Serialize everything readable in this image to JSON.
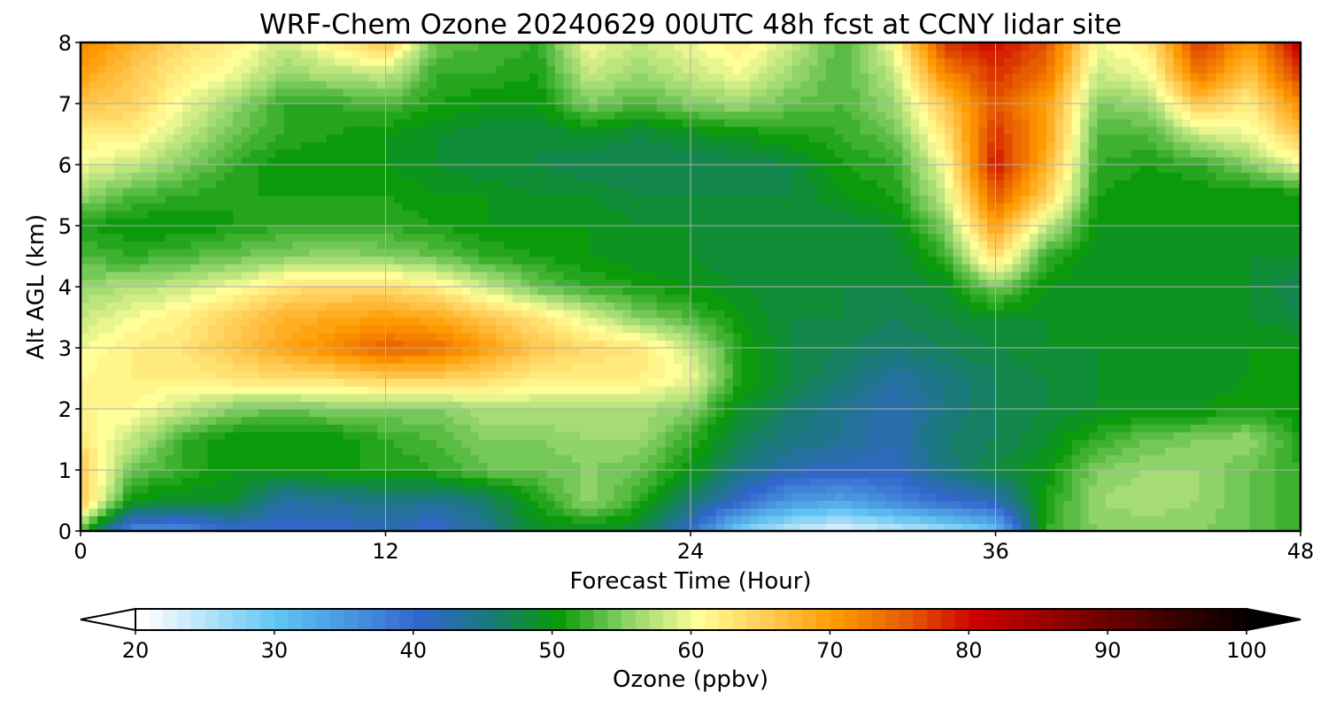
{
  "chart_data": {
    "type": "heatmap",
    "title": "WRF-Chem Ozone  20240629 00UTC 48h fcst at CCNY lidar site",
    "xlabel": "Forecast Time (Hour)",
    "ylabel": "Alt AGL (km)",
    "xlim": [
      0,
      48
    ],
    "ylim": [
      0,
      8
    ],
    "x_ticks": [
      "0",
      "12",
      "24",
      "36",
      "48"
    ],
    "y_ticks": [
      "0",
      "1",
      "2",
      "3",
      "4",
      "5",
      "6",
      "7",
      "8"
    ],
    "grid": true,
    "colorbar": {
      "label": "Ozone  (ppbv)",
      "range": [
        20,
        100
      ],
      "extend": "both",
      "ticks": [
        "20",
        "30",
        "40",
        "50",
        "60",
        "70",
        "80",
        "90",
        "100"
      ],
      "colors": [
        {
          "value": 20,
          "color": "#ffffff"
        },
        {
          "value": 30,
          "color": "#5ec2f2"
        },
        {
          "value": 40,
          "color": "#3366cc"
        },
        {
          "value": 45,
          "color": "#1a7a7a"
        },
        {
          "value": 50,
          "color": "#0a9a0a"
        },
        {
          "value": 55,
          "color": "#8fd36a"
        },
        {
          "value": 60,
          "color": "#ffff99"
        },
        {
          "value": 65,
          "color": "#ffcc55"
        },
        {
          "value": 70,
          "color": "#ff9900"
        },
        {
          "value": 75,
          "color": "#e65c00"
        },
        {
          "value": 80,
          "color": "#cc0000"
        },
        {
          "value": 90,
          "color": "#660000"
        },
        {
          "value": 100,
          "color": "#000000"
        }
      ]
    },
    "x": [
      0,
      2,
      4,
      6,
      8,
      10,
      12,
      14,
      16,
      18,
      20,
      22,
      24,
      26,
      28,
      30,
      32,
      34,
      36,
      38,
      40,
      42,
      44,
      46,
      48
    ],
    "y": [
      0,
      0.5,
      1,
      1.5,
      2,
      2.5,
      3,
      3.5,
      4,
      4.5,
      5,
      5.5,
      6,
      6.5,
      7,
      7.5,
      8
    ],
    "z": [
      [
        53,
        36,
        36,
        40,
        40,
        40,
        42,
        40,
        44,
        49,
        49,
        48,
        40,
        28,
        24,
        22,
        24,
        26,
        30,
        52,
        55,
        55,
        55,
        54,
        52
      ],
      [
        66,
        50,
        49,
        49,
        43,
        44,
        45,
        44,
        46,
        51,
        56,
        52,
        46,
        40,
        35,
        34,
        37,
        40,
        42,
        51,
        56,
        57,
        56,
        54,
        52
      ],
      [
        66,
        54,
        52,
        50,
        50,
        51,
        51,
        52,
        54,
        54,
        55,
        54,
        50,
        45,
        42,
        41,
        41,
        45,
        48,
        50,
        55,
        56,
        56,
        54,
        52
      ],
      [
        63,
        58,
        52,
        50,
        50,
        50,
        52,
        53,
        55,
        55,
        56,
        56,
        52,
        47,
        45,
        44,
        42,
        46,
        47,
        49,
        52,
        54,
        55,
        56,
        51
      ],
      [
        61,
        61,
        58,
        55,
        54,
        55,
        55,
        55,
        57,
        57,
        57,
        57,
        55,
        49,
        46,
        44,
        42,
        45,
        47,
        48,
        49,
        50,
        50,
        51,
        50
      ],
      [
        61,
        62,
        62,
        63,
        64,
        64,
        65,
        65,
        64,
        62,
        62,
        62,
        60,
        51,
        48,
        46,
        43,
        45,
        47,
        48,
        49,
        49,
        49,
        50,
        50
      ],
      [
        60,
        62,
        63,
        66,
        69,
        72,
        75,
        74,
        70,
        66,
        64,
        63,
        58,
        51,
        48,
        47,
        46,
        47,
        48,
        49,
        49,
        49,
        50,
        50,
        50
      ],
      [
        58,
        60,
        62,
        65,
        68,
        69,
        70,
        69,
        66,
        63,
        59,
        55,
        53,
        50,
        48,
        48,
        47,
        48,
        49,
        49,
        49,
        49,
        49,
        49,
        48
      ],
      [
        56,
        57,
        58,
        60,
        63,
        64,
        64,
        62,
        58,
        54,
        52,
        51,
        50,
        49,
        48,
        48,
        48,
        49,
        55,
        50,
        49,
        49,
        49,
        49,
        47
      ],
      [
        53,
        52,
        53,
        54,
        55,
        56,
        55,
        54,
        52,
        51,
        50,
        49,
        49,
        48,
        48,
        48,
        48,
        52,
        64,
        52,
        49,
        49,
        49,
        49,
        49
      ],
      [
        51,
        50,
        50,
        51,
        52,
        52,
        52,
        51,
        50,
        50,
        50,
        49,
        49,
        48,
        48,
        48,
        49,
        55,
        70,
        58,
        50,
        50,
        50,
        50,
        50
      ],
      [
        56,
        53,
        52,
        51,
        51,
        51,
        51,
        50,
        50,
        49,
        49,
        48,
        48,
        48,
        48,
        50,
        51,
        58,
        76,
        65,
        51,
        50,
        50,
        50,
        50
      ],
      [
        60,
        58,
        55,
        52,
        50,
        50,
        50,
        49,
        48,
        48,
        47,
        47,
        47,
        47,
        48,
        51,
        52,
        60,
        80,
        68,
        52,
        51,
        52,
        55,
        60
      ],
      [
        62,
        62,
        58,
        54,
        52,
        51,
        50,
        49,
        48,
        48,
        49,
        48,
        49,
        50,
        51,
        52,
        54,
        63,
        78,
        70,
        53,
        53,
        58,
        60,
        66
      ],
      [
        66,
        65,
        60,
        56,
        52,
        52,
        53,
        51,
        50,
        50,
        55,
        53,
        55,
        56,
        54,
        53,
        56,
        66,
        76,
        70,
        55,
        56,
        66,
        62,
        72
      ],
      [
        70,
        66,
        62,
        60,
        56,
        57,
        58,
        52,
        52,
        51,
        58,
        56,
        58,
        60,
        56,
        53,
        58,
        72,
        78,
        74,
        58,
        60,
        74,
        66,
        78
      ],
      [
        72,
        68,
        64,
        62,
        58,
        62,
        66,
        54,
        53,
        52,
        60,
        58,
        60,
        62,
        58,
        53,
        60,
        78,
        80,
        76,
        60,
        62,
        78,
        70,
        82
      ]
    ]
  }
}
